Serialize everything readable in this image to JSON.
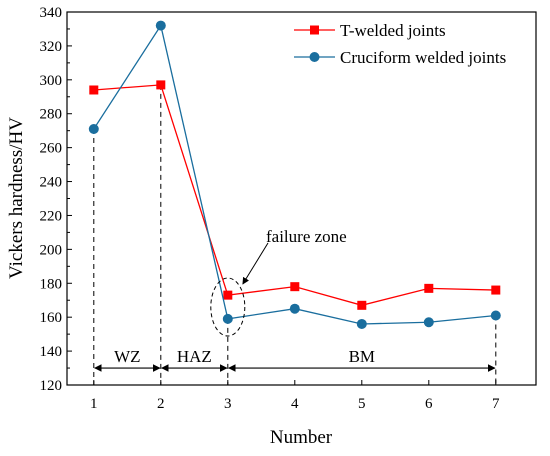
{
  "chart_data": {
    "type": "line",
    "xlabel": "Number",
    "ylabel": "Vickers hardness/HV",
    "xlim": [
      0.6,
      7.6
    ],
    "ylim": [
      120,
      340
    ],
    "x_ticks": [
      1,
      2,
      3,
      4,
      5,
      6,
      7
    ],
    "y_ticks": [
      120,
      140,
      160,
      180,
      200,
      220,
      240,
      260,
      280,
      300,
      320,
      340
    ],
    "x": [
      1,
      2,
      3,
      4,
      5,
      6,
      7
    ],
    "series": [
      {
        "name": "T-welded joints",
        "values": [
          294,
          297,
          173,
          178,
          167,
          177,
          176
        ],
        "color": "#ff0000",
        "marker": "square"
      },
      {
        "name": "Cruciform welded joints",
        "values": [
          271,
          332,
          159,
          165,
          156,
          157,
          161
        ],
        "color": "#1a6e9e",
        "marker": "circle"
      }
    ],
    "legend": "top-right",
    "grid": false,
    "zones": [
      {
        "label": "WZ",
        "from": 1,
        "to": 2
      },
      {
        "label": "HAZ",
        "from": 2,
        "to": 3
      },
      {
        "label": "BM",
        "from": 3,
        "to": 7
      }
    ],
    "annotation": {
      "text": "failure zone",
      "x": 3,
      "y": 166
    }
  }
}
